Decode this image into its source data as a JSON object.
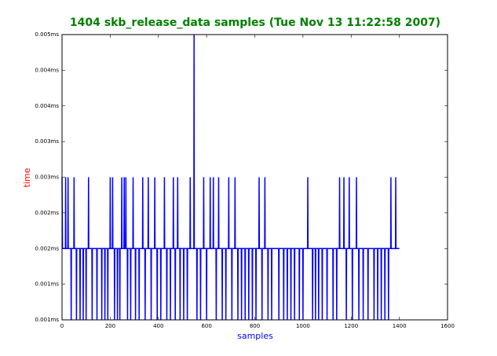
{
  "chart_data": {
    "type": "line",
    "title": "1404 skb_release_data samples (Tue Nov 13 11:22:58 2007)",
    "x_label": "samples",
    "y_label": "time",
    "xlim": [
      0,
      1600
    ],
    "xticks": [
      0,
      200,
      400,
      600,
      800,
      1000,
      1200,
      1400,
      1600
    ],
    "ylim": [
      0.0008,
      0.0048
    ],
    "yticks": [
      {
        "value": 0.0008,
        "label": "0.001ms"
      },
      {
        "value": 0.0013,
        "label": "0.001ms"
      },
      {
        "value": 0.0018,
        "label": "0.002ms"
      },
      {
        "value": 0.0023,
        "label": "0.002ms"
      },
      {
        "value": 0.0028,
        "label": "0.003ms"
      },
      {
        "value": 0.0033,
        "label": "0.003ms"
      },
      {
        "value": 0.0038,
        "label": "0.004ms"
      },
      {
        "value": 0.0043,
        "label": "0.004ms"
      },
      {
        "value": 0.0048,
        "label": "0.005ms"
      }
    ],
    "series": [
      {
        "color": "#0000ff",
        "x": [
          0,
          2,
          14,
          15,
          16,
          24,
          25,
          26,
          37,
          38,
          39,
          49,
          50,
          51,
          59,
          60,
          61,
          74,
          75,
          76,
          87,
          88,
          89,
          99,
          100,
          101,
          109,
          110,
          111,
          124,
          125,
          126,
          144,
          145,
          146,
          164,
          165,
          166,
          177,
          178,
          179,
          189,
          190,
          191,
          199,
          200,
          201,
          209,
          210,
          211,
          217,
          218,
          219,
          229,
          230,
          231,
          239,
          240,
          241,
          247,
          248,
          249,
          257,
          258,
          259,
          264,
          265,
          266,
          271,
          272,
          273,
          284,
          285,
          286,
          294,
          295,
          296,
          304,
          305,
          306,
          319,
          320,
          321,
          334,
          335,
          336,
          344,
          345,
          346,
          357,
          358,
          359,
          369,
          370,
          371,
          384,
          385,
          386,
          394,
          395,
          396,
          409,
          410,
          411,
          424,
          425,
          426,
          434,
          435,
          436,
          449,
          450,
          451,
          461,
          462,
          463,
          469,
          470,
          471,
          479,
          480,
          481,
          489,
          490,
          491,
          504,
          505,
          506,
          519,
          520,
          521,
          531,
          532,
          533,
          547,
          548,
          549,
          559,
          560,
          561,
          574,
          575,
          576,
          587,
          588,
          589,
          599,
          600,
          601,
          614,
          615,
          616,
          627,
          628,
          629,
          639,
          640,
          641,
          649,
          650,
          651,
          664,
          665,
          666,
          679,
          680,
          681,
          691,
          692,
          693,
          704,
          705,
          706,
          717,
          718,
          719,
          729,
          730,
          731,
          744,
          745,
          746,
          759,
          760,
          761,
          774,
          775,
          776,
          789,
          790,
          791,
          804,
          805,
          806,
          817,
          818,
          819,
          829,
          830,
          831,
          841,
          842,
          843,
          854,
          855,
          856,
          869,
          870,
          871,
          899,
          900,
          901,
          919,
          920,
          921,
          934,
          935,
          936,
          949,
          950,
          951,
          964,
          965,
          966,
          984,
          985,
          986,
          999,
          1000,
          1001,
          1019,
          1020,
          1021,
          1039,
          1040,
          1041,
          1051,
          1052,
          1053,
          1064,
          1065,
          1066,
          1079,
          1080,
          1081,
          1099,
          1100,
          1101,
          1124,
          1125,
          1126,
          1139,
          1140,
          1141,
          1151,
          1152,
          1153,
          1169,
          1170,
          1171,
          1179,
          1180,
          1181,
          1191,
          1192,
          1193,
          1204,
          1205,
          1206,
          1221,
          1222,
          1223,
          1231,
          1232,
          1233,
          1249,
          1250,
          1251,
          1269,
          1270,
          1271,
          1294,
          1295,
          1296,
          1309,
          1310,
          1311,
          1324,
          1325,
          1326,
          1339,
          1340,
          1341,
          1354,
          1355,
          1356,
          1364,
          1365,
          1366,
          1384,
          1385,
          1386,
          1400
        ],
        "values": [
          0.0028,
          0.0018,
          0.0018,
          0.0028,
          0.0018,
          0.0018,
          0.0028,
          0.0018,
          0.0018,
          0.0008,
          0.0018,
          0.0018,
          0.0028,
          0.0018,
          0.0018,
          0.0008,
          0.0018,
          0.0018,
          0.0008,
          0.0018,
          0.0018,
          0.0008,
          0.0018,
          0.0018,
          0.0008,
          0.0018,
          0.0018,
          0.0028,
          0.0018,
          0.0018,
          0.0008,
          0.0018,
          0.0018,
          0.0008,
          0.0018,
          0.0018,
          0.0008,
          0.0018,
          0.0018,
          0.0008,
          0.0018,
          0.0018,
          0.0008,
          0.0018,
          0.0018,
          0.0028,
          0.0018,
          0.0018,
          0.0028,
          0.0018,
          0.0018,
          0.0008,
          0.0018,
          0.0018,
          0.0008,
          0.0018,
          0.0018,
          0.0008,
          0.0018,
          0.0018,
          0.0028,
          0.0018,
          0.0018,
          0.0028,
          0.0018,
          0.0018,
          0.0028,
          0.0018,
          0.0018,
          0.0008,
          0.0018,
          0.0018,
          0.0008,
          0.0018,
          0.0018,
          0.0028,
          0.0018,
          0.0018,
          0.0008,
          0.0018,
          0.0018,
          0.0008,
          0.0018,
          0.0018,
          0.0028,
          0.0018,
          0.0018,
          0.0008,
          0.0018,
          0.0018,
          0.0028,
          0.0018,
          0.0018,
          0.0008,
          0.0018,
          0.0018,
          0.0028,
          0.0018,
          0.0018,
          0.0008,
          0.0018,
          0.0018,
          0.0008,
          0.0018,
          0.0018,
          0.0028,
          0.0018,
          0.0018,
          0.0008,
          0.0018,
          0.0018,
          0.0008,
          0.0018,
          0.0018,
          0.0028,
          0.0018,
          0.0018,
          0.0008,
          0.0018,
          0.0018,
          0.0028,
          0.0018,
          0.0018,
          0.0008,
          0.0018,
          0.0018,
          0.0008,
          0.0018,
          0.0018,
          0.0008,
          0.0018,
          0.0018,
          0.0028,
          0.0018,
          0.0018,
          0.0048,
          0.0018,
          0.0018,
          0.0008,
          0.0018,
          0.0018,
          0.0008,
          0.0018,
          0.0018,
          0.0028,
          0.0018,
          0.0018,
          0.0008,
          0.0018,
          0.0018,
          0.0028,
          0.0018,
          0.0018,
          0.0028,
          0.0018,
          0.0018,
          0.0008,
          0.0018,
          0.0018,
          0.0028,
          0.0018,
          0.0018,
          0.0008,
          0.0018,
          0.0018,
          0.0008,
          0.0018,
          0.0018,
          0.0028,
          0.0018,
          0.0018,
          0.0008,
          0.0018,
          0.0018,
          0.0028,
          0.0018,
          0.0018,
          0.0008,
          0.0018,
          0.0018,
          0.0008,
          0.0018,
          0.0018,
          0.0008,
          0.0018,
          0.0018,
          0.0008,
          0.0018,
          0.0018,
          0.0008,
          0.0018,
          0.0018,
          0.0008,
          0.0018,
          0.0018,
          0.0028,
          0.0018,
          0.0018,
          0.0008,
          0.0018,
          0.0018,
          0.0028,
          0.0018,
          0.0018,
          0.0008,
          0.0018,
          0.0018,
          0.0008,
          0.0018,
          0.0018,
          0.0008,
          0.0018,
          0.0018,
          0.0008,
          0.0018,
          0.0018,
          0.0008,
          0.0018,
          0.0018,
          0.0008,
          0.0018,
          0.0018,
          0.0008,
          0.0018,
          0.0018,
          0.0008,
          0.0018,
          0.0018,
          0.0008,
          0.0018,
          0.0018,
          0.0028,
          0.0018,
          0.0018,
          0.0008,
          0.0018,
          0.0018,
          0.0008,
          0.0018,
          0.0018,
          0.0008,
          0.0018,
          0.0018,
          0.0008,
          0.0018,
          0.0018,
          0.0008,
          0.0018,
          0.0018,
          0.0008,
          0.0018,
          0.0018,
          0.0008,
          0.0018,
          0.0018,
          0.0028,
          0.0018,
          0.0018,
          0.0028,
          0.0018,
          0.0018,
          0.0008,
          0.0018,
          0.0018,
          0.0028,
          0.0018,
          0.0018,
          0.0008,
          0.0018,
          0.0018,
          0.0028,
          0.0018,
          0.0018,
          0.0008,
          0.0018,
          0.0018,
          0.0008,
          0.0018,
          0.0018,
          0.0008,
          0.0018,
          0.0018,
          0.0008,
          0.0018,
          0.0018,
          0.0008,
          0.0018,
          0.0018,
          0.0008,
          0.0018,
          0.0018,
          0.0008,
          0.0018,
          0.0018,
          0.0008,
          0.0018,
          0.0018,
          0.0028,
          0.0018,
          0.0018,
          0.0028,
          0.0018,
          0.0018
        ]
      }
    ]
  }
}
